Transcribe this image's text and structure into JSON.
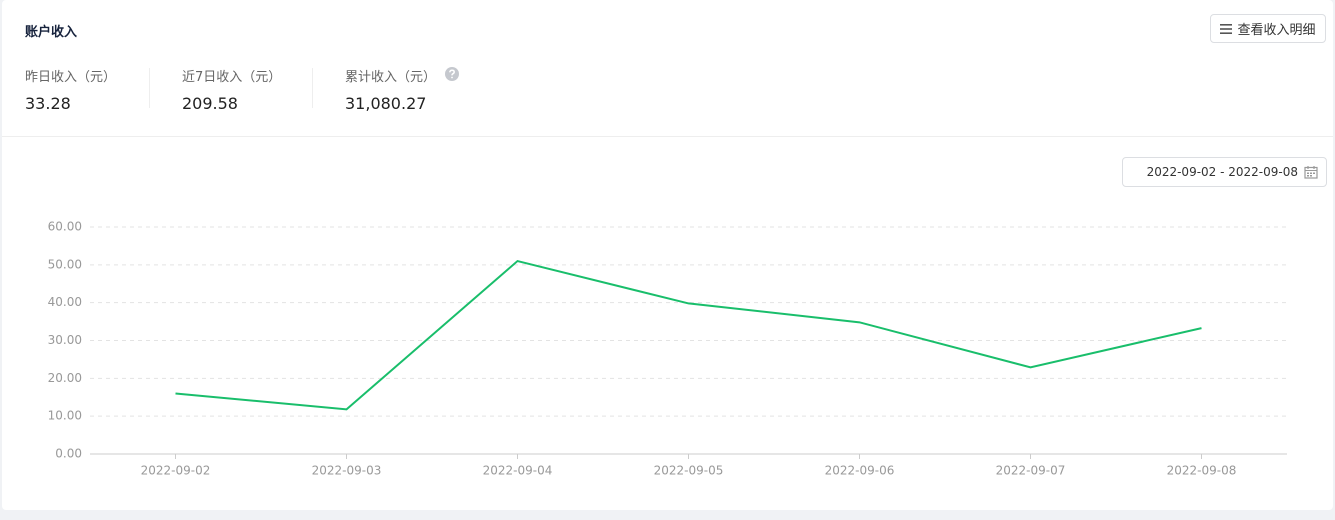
{
  "header": {
    "title": "账户收入",
    "button": "查看收入明细"
  },
  "stats": [
    {
      "label": "昨日收入（元）",
      "value": "33.28"
    },
    {
      "label": "近7日收入（元）",
      "value": "209.58"
    },
    {
      "label": "累计收入（元）",
      "value": "31,080.27"
    }
  ],
  "date_range": "2022-09-02 - 2022-09-08",
  "chart_data": {
    "type": "line",
    "categories": [
      "2022-09-02",
      "2022-09-03",
      "2022-09-04",
      "2022-09-05",
      "2022-09-06",
      "2022-09-07",
      "2022-09-08"
    ],
    "values": [
      16.0,
      11.8,
      51.0,
      39.8,
      34.8,
      22.9,
      33.28
    ],
    "color": "#19be6b",
    "ylim": [
      0,
      60
    ],
    "yticks": [
      {
        "value": 0,
        "label": "0.00"
      },
      {
        "value": 10,
        "label": "10.00"
      },
      {
        "value": 20,
        "label": "20.00"
      },
      {
        "value": 30,
        "label": "30.00"
      },
      {
        "value": 40,
        "label": "40.00"
      },
      {
        "value": 50,
        "label": "50.00"
      },
      {
        "value": 60,
        "label": "60.00"
      }
    ],
    "grid": true
  }
}
